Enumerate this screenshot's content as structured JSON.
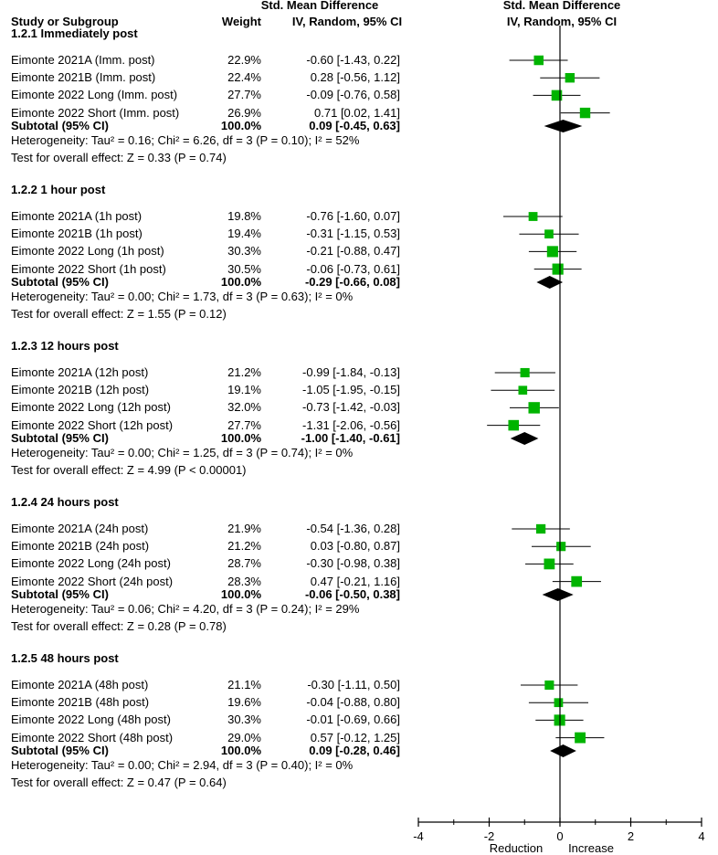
{
  "header": {
    "study": "Study or Subgroup",
    "weight": "Weight",
    "smd_title": "Std. Mean Difference",
    "method": "IV, Random, 95% CI",
    "plot_title": "Std. Mean Difference",
    "plot_method": "IV, Random, 95% CI"
  },
  "chart_data": {
    "type": "forest",
    "xlim": [
      -4,
      4
    ],
    "xticks": [
      "-4",
      "-2",
      "0",
      "2",
      "4"
    ],
    "xlabel_left": "Reduction",
    "xlabel_right": "Increase",
    "colors": {
      "study_marker": "#00b400",
      "summary_diamond": "#000000"
    },
    "subgroups": [
      {
        "title": "1.2.1 Immediately post",
        "studies": [
          {
            "name": "Eimonte 2021A (Imm. post)",
            "weight": "22.9%",
            "ci_text": "-0.60 [-1.43, 0.22]",
            "est": -0.6,
            "lo": -1.43,
            "hi": 0.22,
            "w": 22.9
          },
          {
            "name": "Eimonte 2021B (Imm. post)",
            "weight": "22.4%",
            "ci_text": "0.28 [-0.56, 1.12]",
            "est": 0.28,
            "lo": -0.56,
            "hi": 1.12,
            "w": 22.4
          },
          {
            "name": "Eimonte 2022 Long (Imm. post)",
            "weight": "27.7%",
            "ci_text": "-0.09 [-0.76, 0.58]",
            "est": -0.09,
            "lo": -0.76,
            "hi": 0.58,
            "w": 27.7
          },
          {
            "name": "Eimonte 2022 Short (Imm. post)",
            "weight": "26.9%",
            "ci_text": "0.71 [0.02, 1.41]",
            "est": 0.71,
            "lo": 0.02,
            "hi": 1.41,
            "w": 26.9
          }
        ],
        "subtotal": {
          "label": "Subtotal (95% CI)",
          "weight": "100.0%",
          "ci_text": "0.09 [-0.45, 0.63]",
          "est": 0.09,
          "lo": -0.45,
          "hi": 0.63
        },
        "heterogeneity": "Heterogeneity: Tau² = 0.16; Chi² = 6.26, df = 3 (P = 0.10); I² = 52%",
        "overall": "Test for overall effect: Z = 0.33 (P = 0.74)"
      },
      {
        "title": "1.2.2 1 hour post",
        "studies": [
          {
            "name": "Eimonte 2021A (1h post)",
            "weight": "19.8%",
            "ci_text": "-0.76 [-1.60, 0.07]",
            "est": -0.76,
            "lo": -1.6,
            "hi": 0.07,
            "w": 19.8
          },
          {
            "name": "Eimonte 2021B (1h post)",
            "weight": "19.4%",
            "ci_text": "-0.31 [-1.15, 0.53]",
            "est": -0.31,
            "lo": -1.15,
            "hi": 0.53,
            "w": 19.4
          },
          {
            "name": "Eimonte 2022 Long (1h post)",
            "weight": "30.3%",
            "ci_text": "-0.21 [-0.88, 0.47]",
            "est": -0.21,
            "lo": -0.88,
            "hi": 0.47,
            "w": 30.3
          },
          {
            "name": "Eimonte 2022 Short (1h post)",
            "weight": "30.5%",
            "ci_text": "-0.06 [-0.73, 0.61]",
            "est": -0.06,
            "lo": -0.73,
            "hi": 0.61,
            "w": 30.5
          }
        ],
        "subtotal": {
          "label": "Subtotal (95% CI)",
          "weight": "100.0%",
          "ci_text": "-0.29 [-0.66, 0.08]",
          "est": -0.29,
          "lo": -0.66,
          "hi": 0.08
        },
        "heterogeneity": "Heterogeneity: Tau² = 0.00; Chi² = 1.73, df = 3 (P = 0.63); I² = 0%",
        "overall": "Test for overall effect: Z = 1.55 (P = 0.12)"
      },
      {
        "title": "1.2.3 12 hours post",
        "studies": [
          {
            "name": "Eimonte 2021A (12h post)",
            "weight": "21.2%",
            "ci_text": "-0.99 [-1.84, -0.13]",
            "est": -0.99,
            "lo": -1.84,
            "hi": -0.13,
            "w": 21.2
          },
          {
            "name": "Eimonte 2021B (12h post)",
            "weight": "19.1%",
            "ci_text": "-1.05 [-1.95, -0.15]",
            "est": -1.05,
            "lo": -1.95,
            "hi": -0.15,
            "w": 19.1
          },
          {
            "name": "Eimonte 2022 Long (12h post)",
            "weight": "32.0%",
            "ci_text": "-0.73 [-1.42, -0.03]",
            "est": -0.73,
            "lo": -1.42,
            "hi": -0.03,
            "w": 32.0
          },
          {
            "name": "Eimonte 2022 Short (12h post)",
            "weight": "27.7%",
            "ci_text": "-1.31 [-2.06, -0.56]",
            "est": -1.31,
            "lo": -2.06,
            "hi": -0.56,
            "w": 27.7
          }
        ],
        "subtotal": {
          "label": "Subtotal (95% CI)",
          "weight": "100.0%",
          "ci_text": "-1.00 [-1.40, -0.61]",
          "est": -1.0,
          "lo": -1.4,
          "hi": -0.61
        },
        "heterogeneity": "Heterogeneity: Tau² = 0.00; Chi² = 1.25, df = 3 (P = 0.74); I² = 0%",
        "overall": "Test for overall effect: Z = 4.99 (P < 0.00001)"
      },
      {
        "title": "1.2.4 24 hours post",
        "studies": [
          {
            "name": "Eimonte 2021A (24h post)",
            "weight": "21.9%",
            "ci_text": "-0.54 [-1.36, 0.28]",
            "est": -0.54,
            "lo": -1.36,
            "hi": 0.28,
            "w": 21.9
          },
          {
            "name": "Eimonte 2021B (24h post)",
            "weight": "21.2%",
            "ci_text": "0.03 [-0.80, 0.87]",
            "est": 0.03,
            "lo": -0.8,
            "hi": 0.87,
            "w": 21.2
          },
          {
            "name": "Eimonte 2022 Long (24h post)",
            "weight": "28.7%",
            "ci_text": "-0.30 [-0.98, 0.38]",
            "est": -0.3,
            "lo": -0.98,
            "hi": 0.38,
            "w": 28.7
          },
          {
            "name": "Eimonte 2022 Short (24h post)",
            "weight": "28.3%",
            "ci_text": "0.47 [-0.21, 1.16]",
            "est": 0.47,
            "lo": -0.21,
            "hi": 1.16,
            "w": 28.3
          }
        ],
        "subtotal": {
          "label": "Subtotal (95% CI)",
          "weight": "100.0%",
          "ci_text": "-0.06 [-0.50, 0.38]",
          "est": -0.06,
          "lo": -0.5,
          "hi": 0.38
        },
        "heterogeneity": "Heterogeneity: Tau² = 0.06; Chi² = 4.20, df = 3 (P = 0.24); I² = 29%",
        "overall": "Test for overall effect: Z = 0.28 (P = 0.78)"
      },
      {
        "title": "1.2.5 48 hours post",
        "studies": [
          {
            "name": "Eimonte 2021A (48h post)",
            "weight": "21.1%",
            "ci_text": "-0.30 [-1.11, 0.50]",
            "est": -0.3,
            "lo": -1.11,
            "hi": 0.5,
            "w": 21.1
          },
          {
            "name": "Eimonte 2021B (48h post)",
            "weight": "19.6%",
            "ci_text": "-0.04 [-0.88, 0.80]",
            "est": -0.04,
            "lo": -0.88,
            "hi": 0.8,
            "w": 19.6
          },
          {
            "name": "Eimonte 2022 Long (48h post)",
            "weight": "30.3%",
            "ci_text": "-0.01 [-0.69, 0.66]",
            "est": -0.01,
            "lo": -0.69,
            "hi": 0.66,
            "w": 30.3
          },
          {
            "name": "Eimonte 2022 Short (48h post)",
            "weight": "29.0%",
            "ci_text": "0.57 [-0.12, 1.25]",
            "est": 0.57,
            "lo": -0.12,
            "hi": 1.25,
            "w": 29.0
          }
        ],
        "subtotal": {
          "label": "Subtotal (95% CI)",
          "weight": "100.0%",
          "ci_text": "0.09 [-0.28, 0.46]",
          "est": 0.09,
          "lo": -0.28,
          "hi": 0.46
        },
        "heterogeneity": "Heterogeneity: Tau² = 0.00; Chi² = 2.94, df = 3 (P = 0.40); I² = 0%",
        "overall": "Test for overall effect: Z = 0.47 (P = 0.64)"
      }
    ]
  }
}
